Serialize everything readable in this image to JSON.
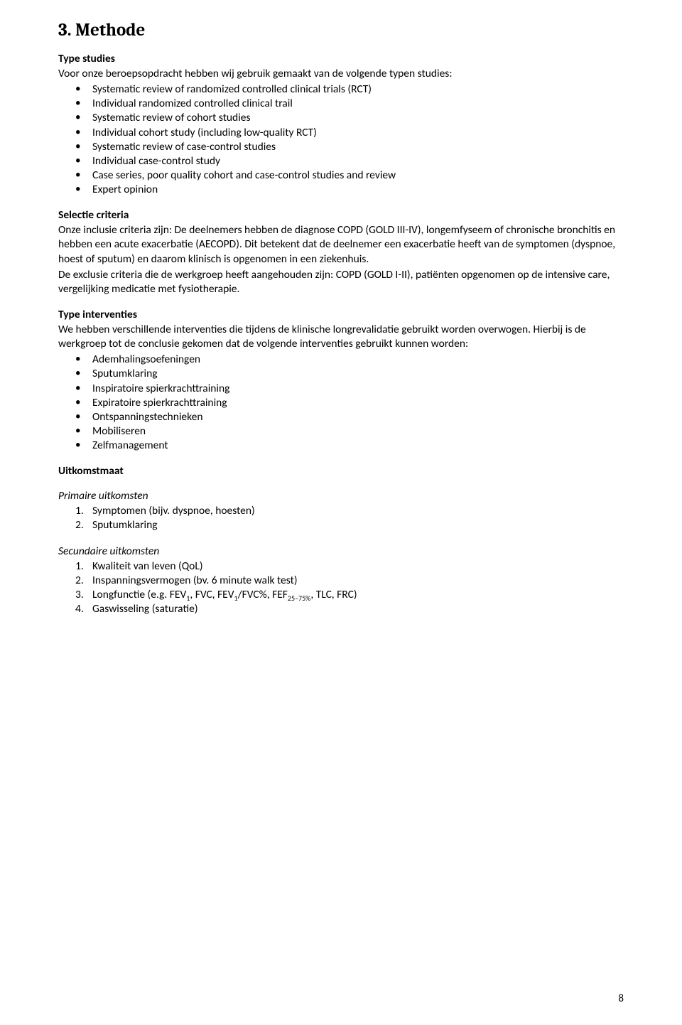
{
  "section_title": "3. Methode",
  "page_number": "8",
  "type_studies": {
    "heading": "Type studies",
    "intro": "Voor onze beroepsopdracht hebben wij gebruik gemaakt van de volgende typen studies:",
    "items": [
      "Systematic review of randomized controlled clinical trials (RCT)",
      "Individual randomized controlled clinical trail",
      "Systematic review of cohort studies",
      "Individual cohort study (including low-quality RCT)",
      "Systematic review of case-control studies",
      "Individual case-control study",
      "Case series, poor quality cohort and case-control studies and review",
      "Expert opinion"
    ]
  },
  "selectie": {
    "heading": "Selectie criteria",
    "p1": "Onze inclusie criteria zijn: De deelnemers hebben de diagnose COPD (GOLD III-IV), longemfyseem of chronische bronchitis en hebben een acute exacerbatie (AECOPD). Dit betekent dat de deelnemer een exacerbatie heeft van de symptomen (dyspnoe, hoest of sputum) en daarom klinisch is opgenomen in een ziekenhuis.",
    "p2": "De exclusie criteria die de werkgroep heeft aangehouden zijn: COPD (GOLD I-II), patiënten opgenomen op de intensive care, vergelijking medicatie met fysiotherapie."
  },
  "interventies": {
    "heading": "Type interventies",
    "intro": "We hebben verschillende interventies die tijdens de klinische longrevalidatie gebruikt worden overwogen. Hierbij is de werkgroep tot de conclusie gekomen dat de volgende interventies gebruikt kunnen worden:",
    "items": [
      "Ademhalingsoefeningen",
      "Sputumklaring",
      "Inspiratoire spierkrachttraining",
      "Expiratoire spierkrachttraining",
      "Ontspanningstechnieken",
      "Mobiliseren",
      "Zelfmanagement"
    ]
  },
  "uitkomstmaat": {
    "heading": "Uitkomstmaat"
  },
  "primaire": {
    "heading": "Primaire uitkomsten",
    "items": [
      "Symptomen (bijv. dyspnoe, hoesten)",
      "Sputumklaring"
    ]
  },
  "secundaire": {
    "heading": "Secundaire uitkomsten",
    "items": [
      "Kwaliteit van leven (QoL)",
      "Inspanningsvermogen (bv. 6 minute walk test)",
      {
        "prefix": "Longfunctie (e.g. FEV",
        "sub1": "1",
        "mid1": ", FVC, FEV",
        "sub2": "1",
        "mid2": "/FVC%, FEF",
        "sub3": "25–75%",
        "suffix": ", TLC, FRC)"
      },
      "Gaswisseling (saturatie)"
    ]
  }
}
